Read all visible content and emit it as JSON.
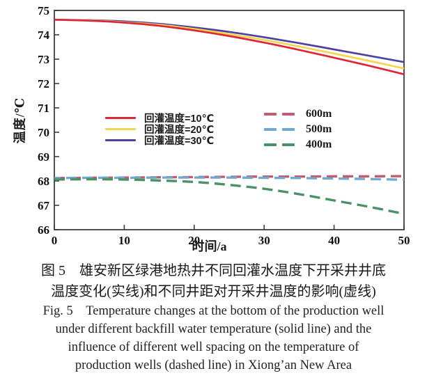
{
  "chart_data": {
    "type": "line",
    "x": [
      0,
      5,
      10,
      15,
      20,
      25,
      30,
      35,
      40,
      45,
      50
    ],
    "series": [
      {
        "name": "回灌温度=10℃",
        "style": "solid",
        "color": "#de2636",
        "values": [
          74.62,
          74.58,
          74.5,
          74.37,
          74.18,
          73.95,
          73.68,
          73.38,
          73.06,
          72.73,
          72.38
        ]
      },
      {
        "name": "回灌温度=20℃",
        "style": "solid",
        "color": "#f6d44e",
        "values": [
          74.62,
          74.59,
          74.52,
          74.41,
          74.24,
          74.03,
          73.79,
          73.52,
          73.23,
          72.93,
          72.62
        ]
      },
      {
        "name": "回灌温度=30℃",
        "style": "solid",
        "color": "#4b42a1",
        "values": [
          74.62,
          74.6,
          74.55,
          74.45,
          74.3,
          74.12,
          73.9,
          73.66,
          73.4,
          73.14,
          72.88
        ]
      },
      {
        "name": "600m",
        "style": "dashed",
        "color": "#c25b6e",
        "values": [
          68.12,
          68.13,
          68.14,
          68.15,
          68.16,
          68.17,
          68.18,
          68.18,
          68.19,
          68.19,
          68.2
        ]
      },
      {
        "name": "500m",
        "style": "dashed",
        "color": "#6fa9cd",
        "values": [
          68.12,
          68.13,
          68.13,
          68.14,
          68.14,
          68.14,
          68.13,
          68.12,
          68.1,
          68.08,
          68.05
        ]
      },
      {
        "name": "400m",
        "style": "dashed",
        "color": "#4b9166",
        "values": [
          68.06,
          68.07,
          68.06,
          68.02,
          67.96,
          67.84,
          67.68,
          67.46,
          67.2,
          66.94,
          66.65
        ]
      }
    ],
    "xlabel": "时间/a",
    "ylabel": "温度/℃",
    "xlim": [
      0,
      50
    ],
    "ylim": [
      66,
      75
    ],
    "xticks": [
      0,
      10,
      20,
      30,
      40,
      50
    ],
    "yticks": [
      66,
      67,
      68,
      69,
      70,
      71,
      72,
      73,
      74,
      75
    ],
    "grid": false,
    "legend_position": "center-left inside plot (solid) and center-right inside plot (dashed)",
    "axis_color": "#3d3d3d",
    "tick_label_color": "#111111"
  },
  "caption": {
    "cn_line1": "图 5　雄安新区绿港地热井不同回灌水温度下开采井井底",
    "cn_line2": "温度变化(实线)和不同井距对开采井温度的影响(虚线)",
    "en_line1": "Fig. 5　Temperature changes at the bottom of the production well",
    "en_line2": "under different backfill water temperature (solid line) and the",
    "en_line3": "influence of different well spacing on the temperature of",
    "en_line4": "production wells (dashed line) in Xiong’an New Area"
  }
}
